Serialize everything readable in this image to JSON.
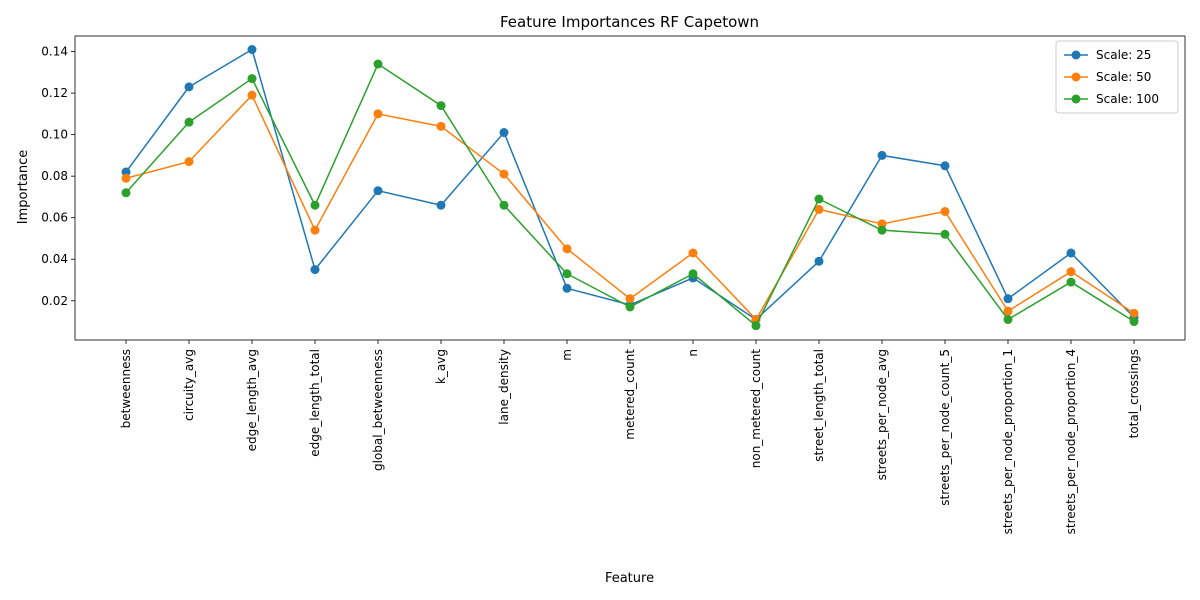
{
  "chart_data": {
    "type": "line",
    "title": "Feature Importances RF Capetown",
    "xlabel": "Feature",
    "ylabel": "Importance",
    "categories": [
      "betweenness",
      "circuity_avg",
      "edge_length_avg",
      "edge_length_total",
      "global_betweenness",
      "k_avg",
      "lane_density",
      "m",
      "metered_count",
      "n",
      "non_metered_count",
      "street_length_total",
      "streets_per_node_avg",
      "streets_per_node_count_5",
      "streets_per_node_proportion_1",
      "streets_per_node_proportion_4",
      "total_crossings"
    ],
    "ylim": [
      0.0011,
      0.1475
    ],
    "yticks": [
      0.02,
      0.04,
      0.06,
      0.08,
      0.1,
      0.12,
      0.14
    ],
    "ytick_labels": [
      "0.02",
      "0.04",
      "0.06",
      "0.08",
      "0.10",
      "0.12",
      "0.14"
    ],
    "grid": false,
    "legend_position": "top-right",
    "series": [
      {
        "name": "Scale: 25",
        "color": "#1f77b4",
        "values": [
          0.082,
          0.123,
          0.141,
          0.035,
          0.073,
          0.066,
          0.101,
          0.026,
          0.018,
          0.031,
          0.011,
          0.039,
          0.09,
          0.085,
          0.021,
          0.043,
          0.012
        ]
      },
      {
        "name": "Scale: 50",
        "color": "#ff7f0e",
        "values": [
          0.079,
          0.087,
          0.119,
          0.054,
          0.11,
          0.104,
          0.081,
          0.045,
          0.021,
          0.043,
          0.011,
          0.064,
          0.057,
          0.063,
          0.015,
          0.034,
          0.014
        ]
      },
      {
        "name": "Scale: 100",
        "color": "#2ca02c",
        "values": [
          0.072,
          0.106,
          0.127,
          0.066,
          0.134,
          0.114,
          0.066,
          0.033,
          0.017,
          0.033,
          0.008,
          0.069,
          0.054,
          0.052,
          0.011,
          0.029,
          0.01
        ]
      }
    ]
  }
}
